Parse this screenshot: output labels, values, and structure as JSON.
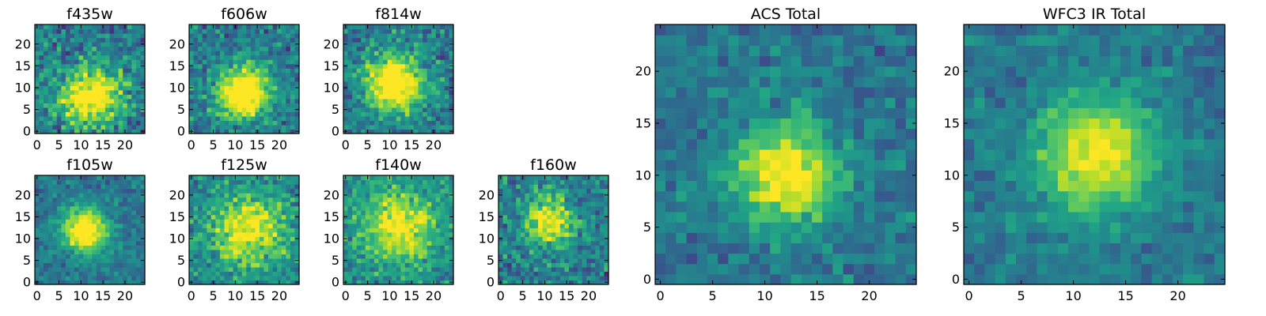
{
  "figure": {
    "colormap": "viridis",
    "pixel_grid": [
      25,
      25
    ],
    "axis_range": [
      -0.5,
      24.5
    ]
  },
  "chart_data": [
    {
      "type": "heatmap",
      "title": "f435w",
      "xticks": [
        0,
        5,
        10,
        15,
        20
      ],
      "yticks": [
        0,
        5,
        10,
        15,
        20
      ],
      "xlim": [
        -0.5,
        24.5
      ],
      "ylim": [
        -0.5,
        24.5
      ],
      "source_center": [
        12,
        8
      ],
      "source_spread": 4.5,
      "source_peak": 0.75,
      "background": 0.55,
      "noise": 0.5
    },
    {
      "type": "heatmap",
      "title": "f606w",
      "xticks": [
        0,
        5,
        10,
        15,
        20
      ],
      "yticks": [
        0,
        5,
        10,
        15,
        20
      ],
      "xlim": [
        -0.5,
        24.5
      ],
      "ylim": [
        -0.5,
        24.5
      ],
      "source_center": [
        12,
        9
      ],
      "source_spread": 4,
      "source_peak": 0.85,
      "background": 0.52,
      "noise": 0.45
    },
    {
      "type": "heatmap",
      "title": "f814w",
      "xticks": [
        0,
        5,
        10,
        15,
        20
      ],
      "yticks": [
        0,
        5,
        10,
        15,
        20
      ],
      "xlim": [
        -0.5,
        24.5
      ],
      "ylim": [
        -0.5,
        24.5
      ],
      "source_center": [
        11,
        11
      ],
      "source_spread": 4.5,
      "source_peak": 0.85,
      "background": 0.52,
      "noise": 0.45
    },
    {
      "type": "heatmap",
      "title": "f105w",
      "xticks": [
        0,
        5,
        10,
        15,
        20
      ],
      "yticks": [
        0,
        5,
        10,
        15,
        20
      ],
      "xlim": [
        -0.5,
        24.5
      ],
      "ylim": [
        -0.5,
        24.5
      ],
      "source_center": [
        11,
        12
      ],
      "source_spread": 3.5,
      "source_peak": 0.8,
      "background": 0.5,
      "noise": 0.3
    },
    {
      "type": "heatmap",
      "title": "f125w",
      "xticks": [
        0,
        5,
        10,
        15,
        20
      ],
      "yticks": [
        0,
        5,
        10,
        15,
        20
      ],
      "xlim": [
        -0.5,
        24.5
      ],
      "ylim": [
        -0.5,
        24.5
      ],
      "source_center": [
        13,
        12
      ],
      "source_spread": 6,
      "source_peak": 0.55,
      "background": 0.6,
      "noise": 0.45
    },
    {
      "type": "heatmap",
      "title": "f140w",
      "xticks": [
        0,
        5,
        10,
        15,
        20
      ],
      "yticks": [
        0,
        5,
        10,
        15,
        20
      ],
      "xlim": [
        -0.5,
        24.5
      ],
      "ylim": [
        -0.5,
        24.5
      ],
      "source_center": [
        12,
        13
      ],
      "source_spread": 6,
      "source_peak": 0.55,
      "background": 0.62,
      "noise": 0.4
    },
    {
      "type": "heatmap",
      "title": "f160w",
      "xticks": [
        0,
        5,
        10,
        15,
        20
      ],
      "yticks": [
        0,
        5,
        10,
        15,
        20
      ],
      "xlim": [
        -0.5,
        24.5
      ],
      "ylim": [
        -0.5,
        24.5
      ],
      "source_center": [
        11,
        14
      ],
      "source_spread": 4,
      "source_peak": 0.6,
      "background": 0.55,
      "noise": 0.45
    },
    {
      "type": "heatmap",
      "title": "ACS Total",
      "xticks": [
        0,
        5,
        10,
        15,
        20
      ],
      "yticks": [
        0,
        5,
        10,
        15,
        20
      ],
      "xlim": [
        -0.5,
        24.5
      ],
      "ylim": [
        -0.5,
        24.5
      ],
      "source_center": [
        12,
        10
      ],
      "source_spread": 3.5,
      "source_peak": 0.65,
      "background": 0.48,
      "noise": 0.3
    },
    {
      "type": "heatmap",
      "title": "WFC3 IR Total",
      "xticks": [
        0,
        5,
        10,
        15,
        20
      ],
      "yticks": [
        0,
        5,
        10,
        15,
        20
      ],
      "xlim": [
        -0.5,
        24.5
      ],
      "ylim": [
        -0.5,
        24.5
      ],
      "source_center": [
        12,
        12
      ],
      "source_spread": 4,
      "source_peak": 0.6,
      "background": 0.5,
      "noise": 0.25
    }
  ]
}
